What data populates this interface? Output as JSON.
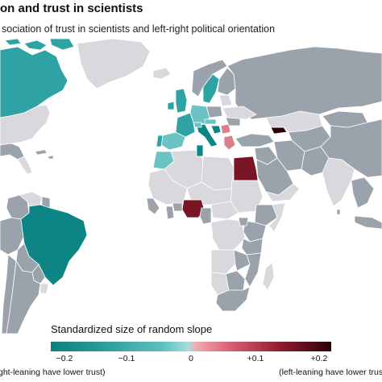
{
  "header": {
    "title": "on and trust in scientists",
    "subtitle": "sociation of trust in scientists and left-right political orientation"
  },
  "map": {
    "colors": {
      "no_data": "#d9d9dd",
      "neutral_gray": "#9aa3ab",
      "teal_dark": "#0d8585",
      "teal_mid": "#2fa3a3",
      "teal_light": "#6cc3c3",
      "pink": "#e07d8c",
      "red_dark": "#7a1525",
      "near_black": "#2a0206",
      "ocean": "#ffffff"
    }
  },
  "legend": {
    "title": "Standardized size of random slope",
    "ticks": [
      "−0.2",
      "−0.1",
      "0",
      "+0.1",
      "+0.2"
    ],
    "left_note": "ght-leaning have lower trust)",
    "right_note": "(left-leaning have lower trust"
  }
}
